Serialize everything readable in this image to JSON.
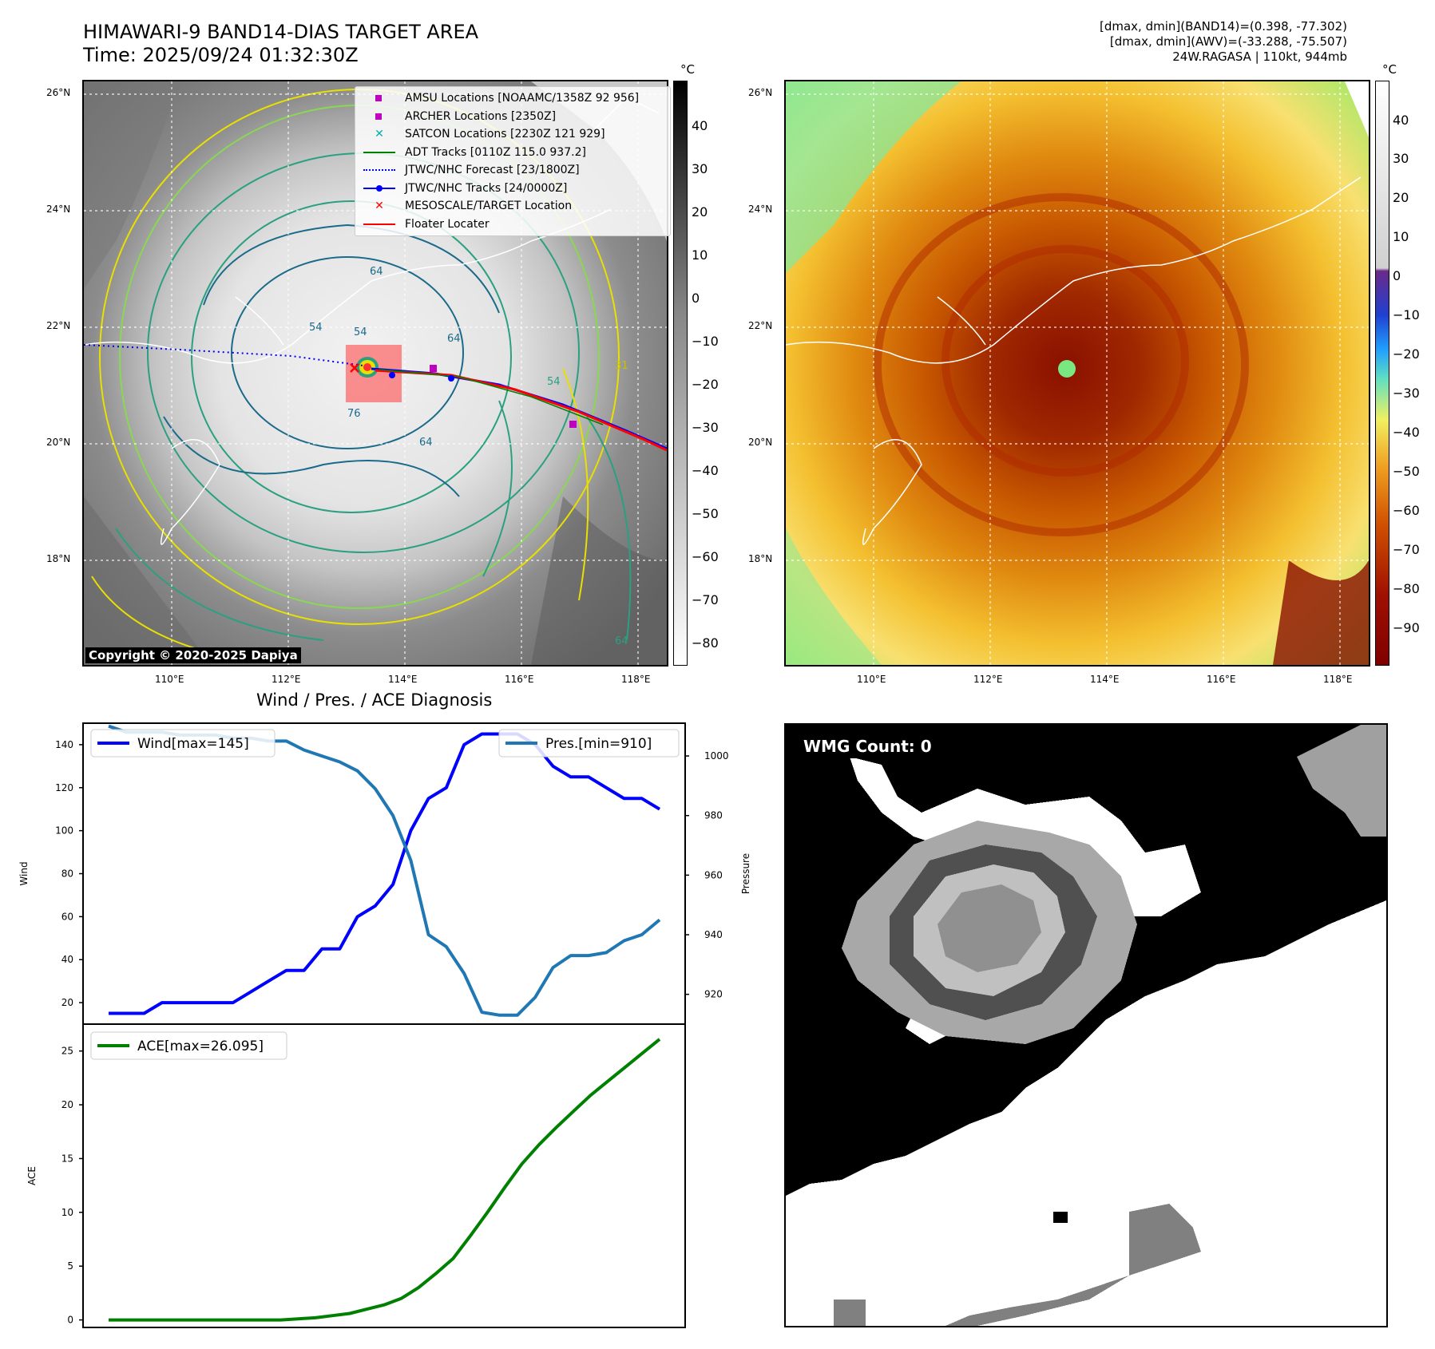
{
  "header": {
    "title_line1": "HIMAWARI-9 BAND14-DIAS TARGET AREA",
    "title_line2": "Time: 2025/09/24 01:32:30Z",
    "info_line1": "[dmax, dmin](BAND14)=(0.398, -77.302)",
    "info_line2": "[dmax, dmin](AWV)=(-33.288, -75.507)",
    "info_line3": "24W.RAGASA | 110kt, 944mb"
  },
  "map_left": {
    "lat_ticks": [
      "26°N",
      "24°N",
      "22°N",
      "20°N",
      "18°N"
    ],
    "lon_ticks": [
      "110°E",
      "112°E",
      "114°E",
      "116°E",
      "118°E"
    ],
    "copyright": "Copyright © 2020-2025 Dapiya",
    "colorbar_unit": "°C",
    "colorbar_ticks": [
      "40",
      "30",
      "20",
      "10",
      "0",
      "−10",
      "−20",
      "−30",
      "−40",
      "−50",
      "−60",
      "−70",
      "−80"
    ],
    "contour_labels": [
      "64",
      "54",
      "54",
      "64",
      "76",
      "64",
      "54",
      "31",
      "64"
    ],
    "legend": [
      {
        "label": "AMSU Locations [NOAAMC/1358Z 92 956]",
        "marker": "square",
        "color": "#c000c0"
      },
      {
        "label": "ARCHER Locations [2350Z]",
        "marker": "square",
        "color": "#c000c0"
      },
      {
        "label": "SATCON Locations [2230Z 121 929]",
        "marker": "x",
        "color": "#00b0b0"
      },
      {
        "label": "ADT Tracks [0110Z 115.0 937.2]",
        "marker": "line",
        "color": "#008000"
      },
      {
        "label": "JTWC/NHC Forecast [23/1800Z]",
        "marker": "dotted",
        "color": "#0000ff"
      },
      {
        "label": "JTWC/NHC Tracks [24/0000Z]",
        "marker": "dotline",
        "color": "#0000ff"
      },
      {
        "label": "MESOSCALE/TARGET Location",
        "marker": "x",
        "color": "#ff0000"
      },
      {
        "label": "Floater Locater",
        "marker": "line",
        "color": "#ff0000"
      }
    ]
  },
  "map_right": {
    "lat_ticks": [
      "26°N",
      "24°N",
      "22°N",
      "20°N",
      "18°N"
    ],
    "lon_ticks": [
      "110°E",
      "112°E",
      "114°E",
      "116°E",
      "118°E"
    ],
    "colorbar_unit": "°C",
    "colorbar_ticks": [
      "40",
      "30",
      "20",
      "10",
      "0",
      "−10",
      "−20",
      "−30",
      "−40",
      "−50",
      "−60",
      "−70",
      "−80",
      "−90"
    ]
  },
  "wmg": {
    "label": "WMG Count: 0"
  },
  "chart_data": [
    {
      "type": "line",
      "title": "Wind / Pres. / ACE Diagnosis",
      "ylabel": "Wind",
      "y2label": "Pressure",
      "ylim": [
        10,
        150
      ],
      "y2lim": [
        910,
        1011
      ],
      "yticks": [
        20,
        40,
        60,
        80,
        100,
        120,
        140
      ],
      "y2ticks": [
        920,
        940,
        960,
        980,
        1000
      ],
      "series": [
        {
          "name": "Wind[max=145]",
          "axis": "left",
          "color": "#0000ff",
          "values": [
            15,
            15,
            15,
            20,
            20,
            20,
            20,
            20,
            25,
            30,
            35,
            35,
            45,
            45,
            60,
            65,
            75,
            100,
            115,
            120,
            140,
            145,
            145,
            145,
            140,
            130,
            125,
            125,
            120,
            115,
            115,
            110
          ]
        },
        {
          "name": "Pres.[min=910]",
          "axis": "right",
          "color": "#1f77b4",
          "values": [
            1010,
            1008,
            1008,
            1008,
            1007,
            1007,
            1007,
            1006,
            1006,
            1005,
            1005,
            1002,
            1000,
            998,
            995,
            989,
            980,
            965,
            940,
            936,
            927,
            914,
            913,
            913,
            919,
            929,
            933,
            933,
            934,
            938,
            940,
            945
          ]
        }
      ]
    },
    {
      "type": "line",
      "ylabel": "ACE",
      "ylim": [
        -0.7,
        27.5
      ],
      "yticks": [
        0,
        5,
        10,
        15,
        20,
        25
      ],
      "series": [
        {
          "name": "ACE[max=26.095]",
          "color": "#008000",
          "values": [
            0,
            0,
            0,
            0,
            0,
            0,
            0,
            0,
            0,
            0,
            0,
            0.1,
            0.2,
            0.4,
            0.6,
            1.0,
            1.4,
            2.0,
            3.0,
            4.3,
            5.7,
            7.8,
            10.0,
            12.3,
            14.5,
            16.3,
            17.9,
            19.4,
            20.9,
            22.2,
            23.5,
            24.8,
            26.1
          ]
        }
      ]
    }
  ]
}
